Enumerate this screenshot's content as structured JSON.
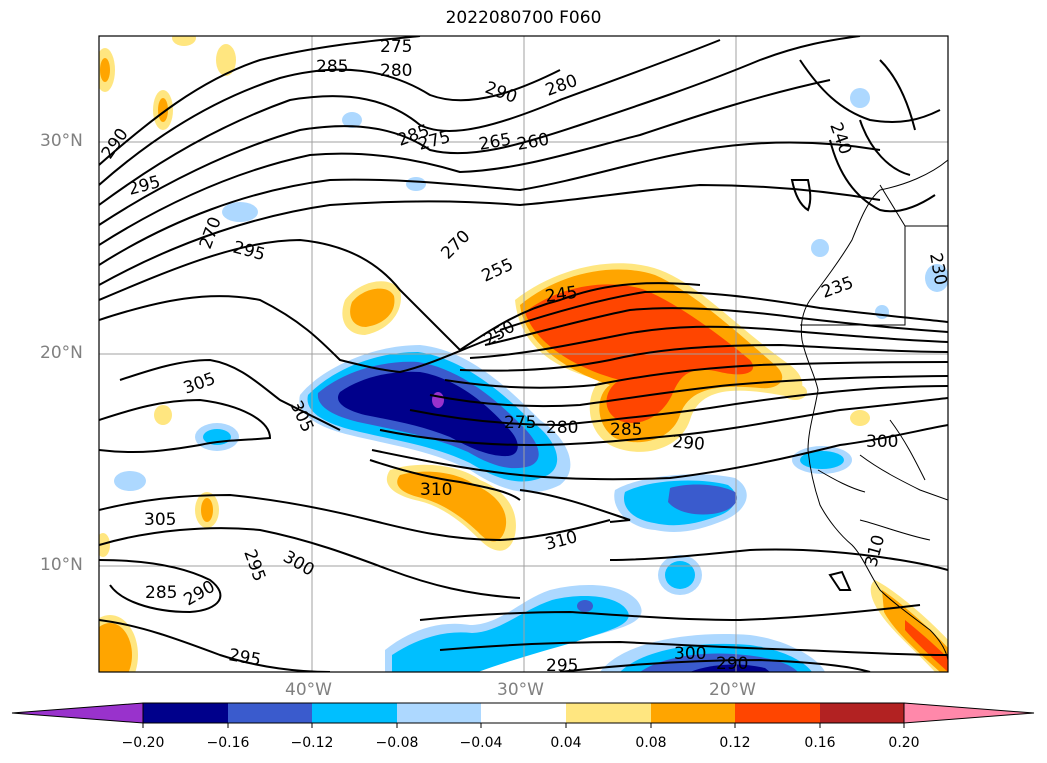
{
  "title": "2022080700 F060",
  "axes": {
    "lat_labels": [
      "30°N",
      "20°N",
      "10°N"
    ],
    "lon_labels": [
      "40°W",
      "30°W",
      "20°W"
    ]
  },
  "contour_labels": [
    "275",
    "285",
    "280",
    "290",
    "280",
    "290",
    "285",
    "275",
    "265",
    "260",
    "240",
    "295",
    "270",
    "295",
    "270",
    "255",
    "245",
    "235",
    "230",
    "250",
    "305",
    "305",
    "275",
    "280",
    "285",
    "290",
    "300",
    "310",
    "305",
    "310",
    "310",
    "285",
    "290",
    "295",
    "300",
    "295",
    "295",
    "300",
    "290"
  ],
  "colorbar": {
    "ticks": [
      "−0.20",
      "−0.16",
      "−0.12",
      "−0.08",
      "−0.04",
      "0.04",
      "0.08",
      "0.12",
      "0.16",
      "0.20"
    ],
    "colors": [
      "#9932cc",
      "#00008b",
      "#3a5bcd",
      "#00bfff",
      "#add8ff",
      "#ffffff",
      "#ffe680",
      "#ffa500",
      "#ff4500",
      "#b22222",
      "#ff88aa"
    ]
  }
}
